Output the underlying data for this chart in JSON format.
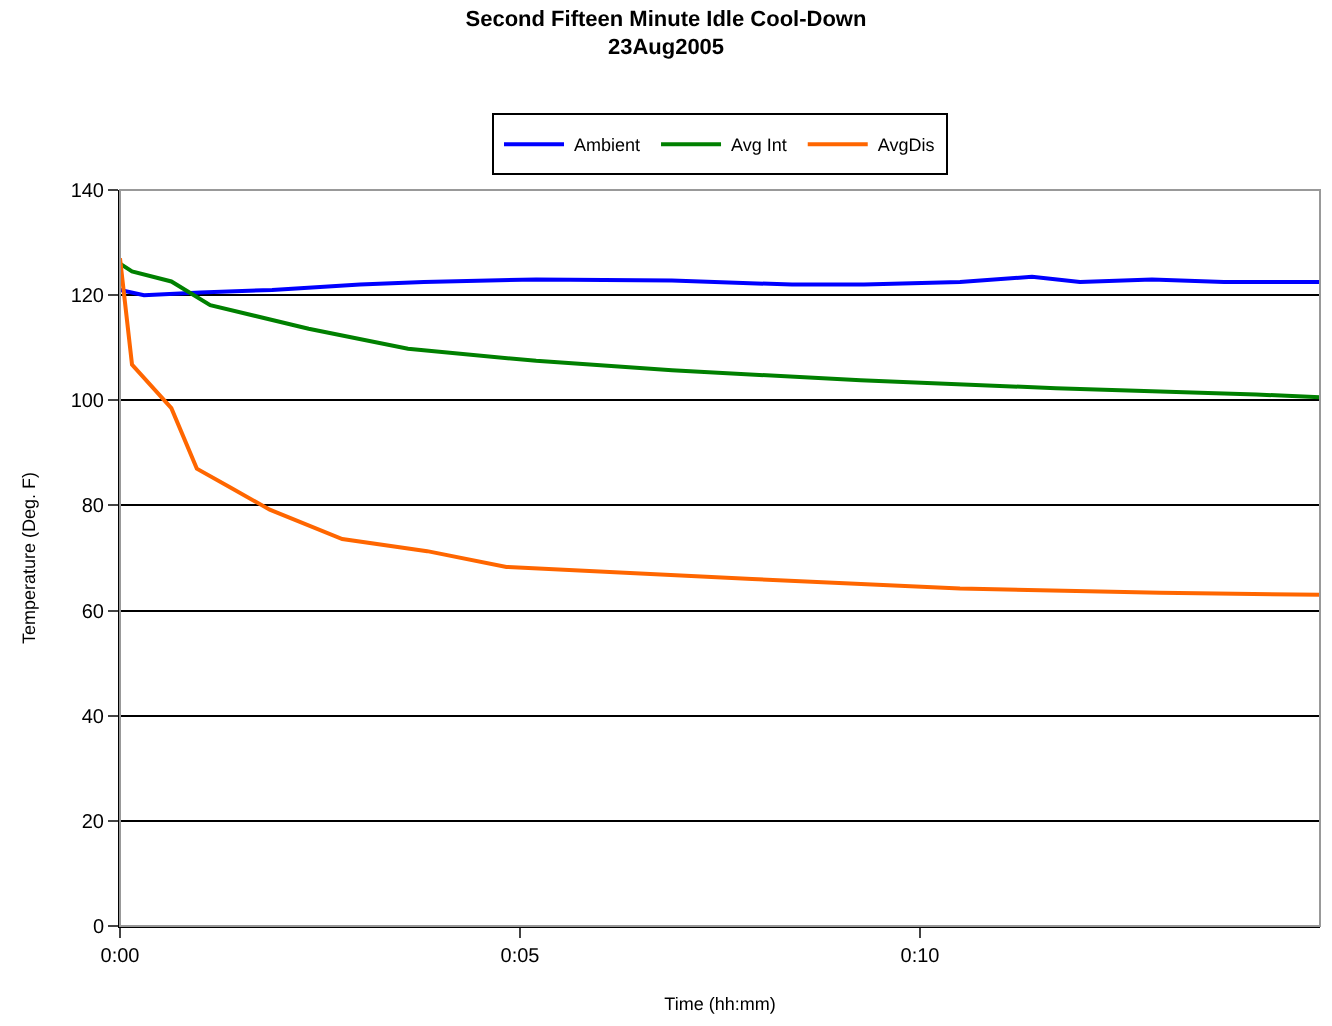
{
  "chart_data": {
    "type": "line",
    "title": "Second Fifteen Minute Idle Cool-Down\n23Aug2005",
    "xlabel": "Time (hh:mm)",
    "ylabel": "Temperature (Deg. F)",
    "xlim": [
      0,
      0.25
    ],
    "xticks": [
      {
        "value": 0,
        "label": "0:00"
      },
      {
        "value": 0.08333,
        "label": "0:05"
      },
      {
        "value": 0.16667,
        "label": "0:10"
      }
    ],
    "ylim": [
      0,
      140
    ],
    "yticks": [
      0,
      20,
      40,
      60,
      80,
      100,
      120,
      140
    ],
    "grid": "y",
    "legend": "top",
    "marker": "none",
    "line_style": "solid",
    "series": [
      {
        "name": "Ambient",
        "color": "#0000ff",
        "x": [
          0,
          0.005,
          0.0167,
          0.0317,
          0.05,
          0.0633,
          0.0867,
          0.115,
          0.14,
          0.155,
          0.175,
          0.19,
          0.2,
          0.215,
          0.23,
          0.25
        ],
        "values": [
          121,
          120,
          120.5,
          121,
          122,
          122.5,
          123,
          122.8,
          122,
          122,
          122.5,
          123.5,
          122.5,
          123,
          122.5,
          122.5
        ]
      },
      {
        "name": "Avg Int",
        "color": "#008000",
        "x": [
          0,
          0.0025,
          0.0107,
          0.0188,
          0.0393,
          0.06,
          0.0867,
          0.115,
          0.1543,
          0.195,
          0.2367,
          0.25
        ],
        "values": [
          126,
          124.5,
          122.6,
          118.1,
          113.6,
          109.8,
          107.5,
          105.7,
          103.8,
          102.3,
          101.1,
          100.6
        ]
      },
      {
        "name": "AvgDis",
        "color": "#ff6600",
        "x": [
          0,
          0.0025,
          0.0107,
          0.016,
          0.023,
          0.0312,
          0.0463,
          0.064,
          0.0805,
          0.1317,
          0.175,
          0.2167,
          0.25
        ],
        "values": [
          127,
          106.8,
          98.5,
          87,
          83.4,
          79.2,
          73.6,
          71.3,
          68.3,
          66,
          64.2,
          63.4,
          63
        ]
      }
    ]
  }
}
